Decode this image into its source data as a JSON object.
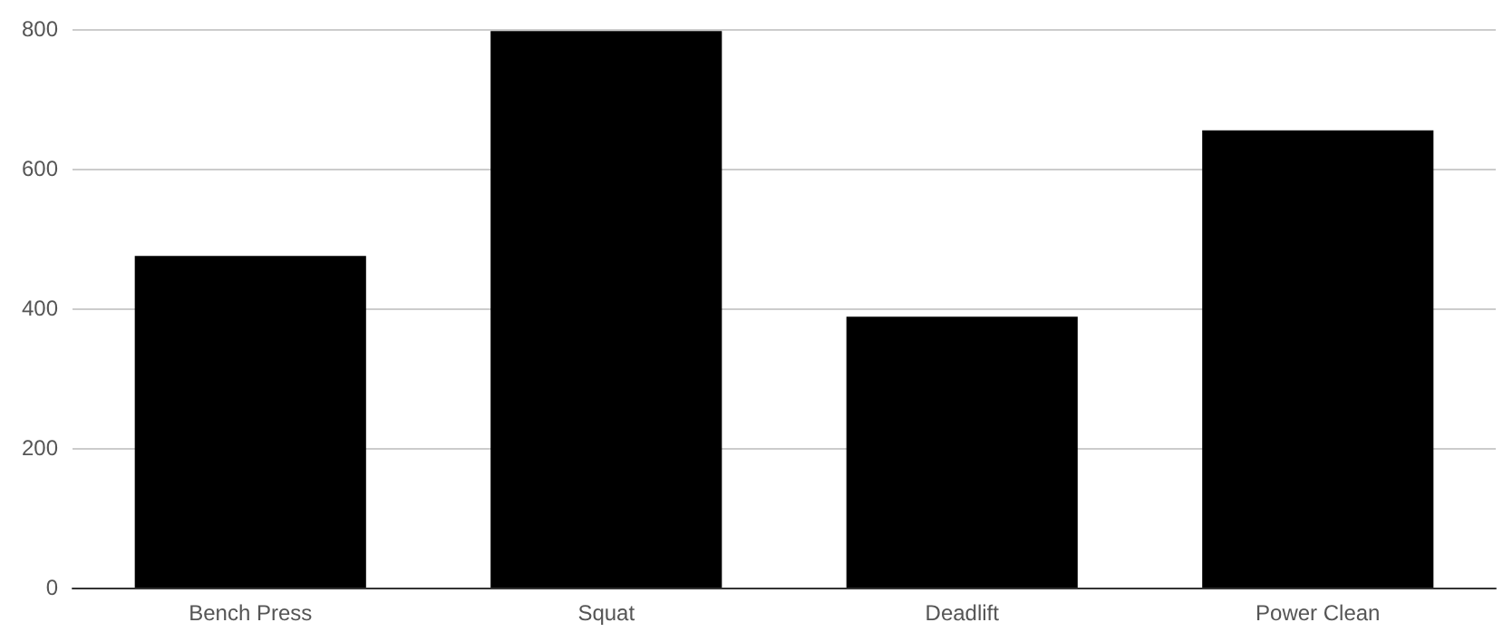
{
  "chart_data": {
    "type": "bar",
    "categories": [
      "Bench Press",
      "Squat",
      "Deadlift",
      "Power Clean"
    ],
    "values": [
      475,
      797,
      388,
      655
    ],
    "color": "#000000",
    "ylim": [
      0,
      800
    ],
    "yticks": [
      0,
      200,
      400,
      600,
      800
    ],
    "grid": "y"
  }
}
